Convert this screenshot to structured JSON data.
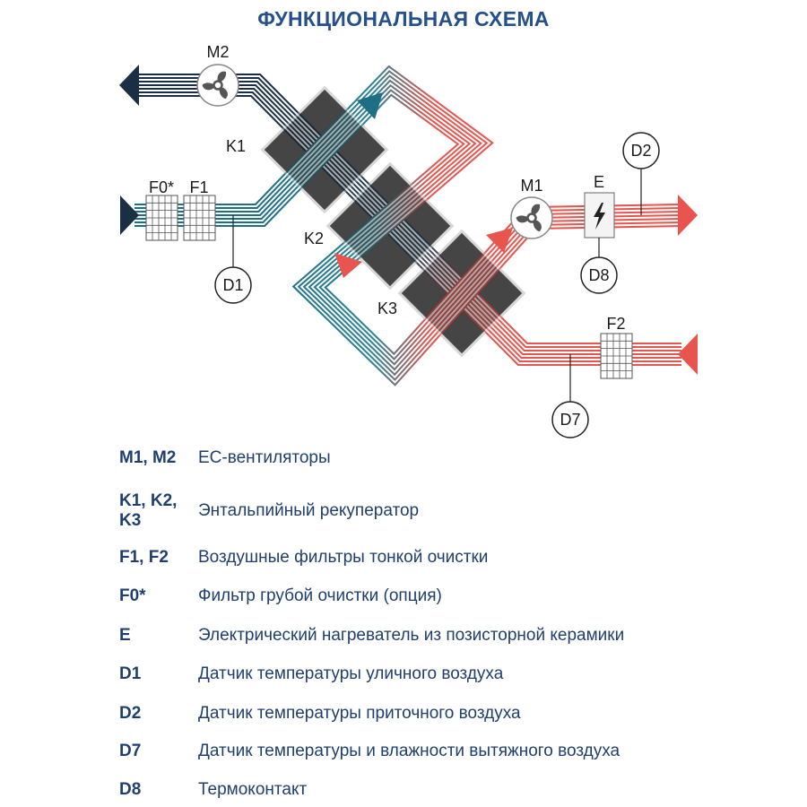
{
  "title": "ФУНКЦИОНАЛЬНАЯ СХЕМА",
  "colors": {
    "title": "#25508c",
    "legend_text": "#1f3f6e",
    "supply_warm": "#e8554e",
    "outdoor_cold": "#1e6f86",
    "exhaust_dark": "#1b2f44",
    "recuperator": "#1c1c1c"
  },
  "diagram": {
    "labels": {
      "M2": "M2",
      "M1": "M1",
      "K1": "K1",
      "K2": "K2",
      "K3": "K3",
      "F0": "F0*",
      "F1": "F1",
      "F2": "F2",
      "E": "E",
      "D1": "D1",
      "D2": "D2",
      "D7": "D7",
      "D8": "D8"
    },
    "icons": {
      "fan": "fan-icon",
      "heater": "lightning-icon",
      "filter": "grid-filter-icon"
    }
  },
  "legend": [
    {
      "key": "M1, M2",
      "desc": "EC-вентиляторы"
    },
    {
      "key": "K1, K2, K3",
      "desc": "Энтальпийный рекуператор"
    },
    {
      "key": "F1, F2",
      "desc": "Воздушные фильтры тонкой очистки"
    },
    {
      "key": "F0*",
      "desc": "Фильтр грубой очистки (опция)"
    },
    {
      "key": "E",
      "desc": "Электрический нагреватель из позисторной керамики"
    },
    {
      "key": "D1",
      "desc": "Датчик температуры уличного воздуха"
    },
    {
      "key": "D2",
      "desc": "Датчик температуры приточного воздуха"
    },
    {
      "key": "D7",
      "desc": "Датчик температуры и влажности вытяжного воздуха"
    },
    {
      "key": "D8",
      "desc": "Термоконтакт"
    }
  ]
}
